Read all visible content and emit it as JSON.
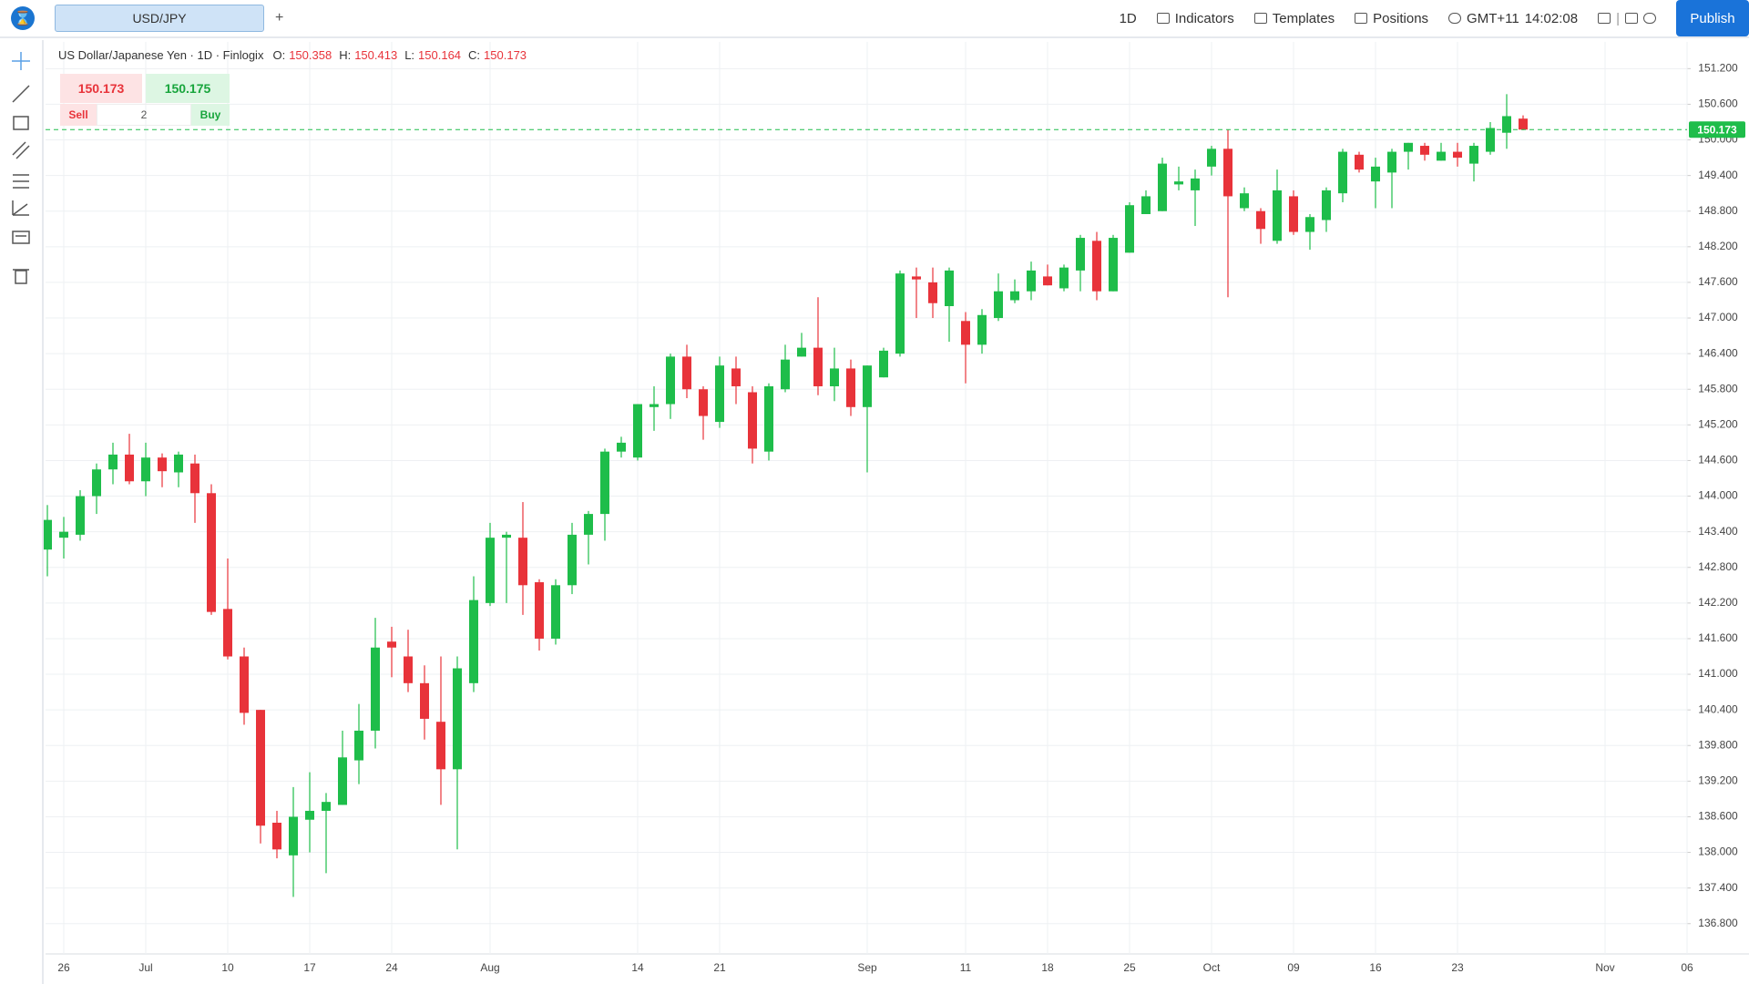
{
  "toolbar": {
    "tab": "USD/JPY",
    "add": "+",
    "interval": "1D",
    "indicators": "Indicators",
    "templates": "Templates",
    "positions": "Positions",
    "timezone": "GMT+11",
    "time": "14:02:08",
    "publish": "Publish"
  },
  "legend": {
    "title": "US Dollar/Japanese Yen · 1D · Finlogix",
    "fields": [
      {
        "label": "O:",
        "value": "150.358"
      },
      {
        "label": "H:",
        "value": "150.413"
      },
      {
        "label": "L:",
        "value": "150.164"
      },
      {
        "label": "C:",
        "value": "150.173"
      }
    ]
  },
  "trade": {
    "sell_price": "150.173",
    "buy_price": "150.175",
    "sell": "Sell",
    "quantity": "2",
    "buy": "Buy"
  },
  "chart_data": {
    "type": "candlestick",
    "categories": [
      null,
      "26",
      null,
      null,
      null,
      null,
      "Jul",
      null,
      null,
      null,
      null,
      "10",
      null,
      null,
      null,
      null,
      "17",
      null,
      null,
      null,
      null,
      "24",
      null,
      null,
      null,
      null,
      null,
      "Aug",
      null,
      null,
      null,
      null,
      null,
      null,
      null,
      null,
      "14",
      null,
      null,
      null,
      null,
      "21",
      null,
      null,
      null,
      null,
      null,
      null,
      null,
      null,
      "Sep",
      null,
      null,
      null,
      null,
      null,
      "11",
      null,
      null,
      null,
      null,
      "18",
      null,
      null,
      null,
      null,
      "25",
      null,
      null,
      null,
      null,
      "Oct",
      null,
      null,
      null,
      null,
      "09",
      null,
      null,
      null,
      null,
      "16",
      null,
      null,
      null,
      null,
      "23",
      null,
      null,
      null,
      null,
      null,
      null,
      null,
      null,
      "Nov",
      null,
      null,
      null,
      null,
      "06"
    ],
    "open": [
      143.1,
      143.3,
      143.35,
      144.0,
      144.45,
      144.7,
      144.25,
      144.65,
      144.4,
      144.55,
      144.05,
      142.1,
      141.3,
      140.4,
      138.5,
      137.95,
      138.55,
      138.7,
      138.8,
      139.55,
      140.05,
      141.55,
      141.3,
      140.85,
      140.2,
      139.4,
      140.85,
      142.2,
      143.3,
      143.3,
      142.55,
      141.6,
      142.5,
      143.35,
      143.7,
      144.75,
      144.65,
      145.5,
      145.55,
      146.35,
      145.8,
      145.25,
      146.15,
      145.75,
      144.75,
      145.8,
      146.35,
      146.5,
      145.85,
      146.15,
      145.5,
      146.0,
      146.4,
      147.7,
      147.6,
      147.2,
      146.95,
      146.55,
      147.0,
      147.3,
      147.45,
      147.7,
      147.5,
      147.8,
      148.3,
      147.45,
      148.1,
      148.75,
      148.8,
      149.25,
      149.15,
      149.55,
      149.85,
      148.85,
      148.8,
      148.3,
      149.05,
      148.45,
      148.65,
      149.1,
      149.75,
      149.3,
      149.45,
      149.8,
      149.9,
      149.65,
      149.8,
      149.6,
      149.8,
      150.12,
      150.358,
      null,
      null,
      null,
      null,
      null,
      null,
      null,
      null,
      null,
      null
    ],
    "high": [
      143.85,
      143.65,
      144.1,
      144.55,
      144.9,
      145.05,
      144.9,
      144.72,
      144.75,
      144.7,
      144.2,
      142.95,
      141.45,
      140.4,
      138.7,
      139.1,
      139.35,
      139.0,
      140.05,
      140.5,
      141.95,
      141.8,
      141.75,
      141.15,
      141.3,
      141.3,
      142.65,
      143.55,
      143.4,
      143.9,
      142.6,
      142.6,
      143.55,
      143.75,
      144.8,
      145.0,
      145.55,
      145.85,
      146.4,
      146.55,
      145.85,
      146.35,
      146.35,
      145.85,
      145.9,
      146.55,
      146.75,
      147.35,
      146.5,
      146.3,
      146.2,
      146.5,
      147.8,
      147.85,
      147.85,
      147.85,
      147.1,
      147.15,
      147.75,
      147.65,
      147.95,
      147.9,
      147.9,
      148.4,
      148.45,
      148.4,
      148.95,
      149.15,
      149.7,
      149.55,
      149.5,
      149.9,
      150.17,
      149.2,
      148.85,
      149.5,
      149.15,
      148.75,
      149.2,
      149.85,
      149.8,
      149.7,
      149.85,
      149.95,
      149.95,
      149.95,
      149.95,
      149.95,
      150.3,
      150.77,
      150.413,
      null,
      null,
      null,
      null,
      null,
      null,
      null,
      null,
      null,
      null
    ],
    "low": [
      142.65,
      142.95,
      143.25,
      143.7,
      144.2,
      144.2,
      144.0,
      144.15,
      144.15,
      143.55,
      142.0,
      141.25,
      140.15,
      138.15,
      137.9,
      137.25,
      138.0,
      137.65,
      138.8,
      139.15,
      139.75,
      140.95,
      140.7,
      139.9,
      138.8,
      138.05,
      140.7,
      142.15,
      142.2,
      142.0,
      141.4,
      141.5,
      142.35,
      142.85,
      143.25,
      144.65,
      144.6,
      145.1,
      145.3,
      145.65,
      144.95,
      145.15,
      145.55,
      144.55,
      144.6,
      145.75,
      146.35,
      145.7,
      145.6,
      145.35,
      144.4,
      146.0,
      146.35,
      147.0,
      147.0,
      146.6,
      145.9,
      146.4,
      146.95,
      147.25,
      147.3,
      147.55,
      147.45,
      147.45,
      147.3,
      147.45,
      148.1,
      148.75,
      148.8,
      149.15,
      148.55,
      149.4,
      147.35,
      148.8,
      148.25,
      148.25,
      148.4,
      148.15,
      148.45,
      148.95,
      149.45,
      148.85,
      148.85,
      149.5,
      149.65,
      149.65,
      149.55,
      149.3,
      149.75,
      149.85,
      150.164,
      null,
      null,
      null,
      null,
      null,
      null,
      null,
      null,
      null,
      null
    ],
    "close": [
      143.6,
      143.4,
      144.0,
      144.45,
      144.7,
      144.25,
      144.65,
      144.42,
      144.7,
      144.05,
      142.05,
      141.3,
      140.35,
      138.45,
      138.05,
      138.6,
      138.7,
      138.85,
      139.6,
      140.05,
      141.45,
      141.45,
      140.85,
      140.25,
      139.4,
      141.1,
      142.25,
      143.3,
      143.35,
      142.5,
      141.6,
      142.5,
      143.35,
      143.7,
      144.75,
      144.9,
      145.55,
      145.55,
      146.35,
      145.8,
      145.35,
      146.2,
      145.85,
      144.8,
      145.85,
      146.3,
      146.5,
      145.85,
      146.15,
      145.5,
      146.2,
      146.45,
      147.75,
      147.65,
      147.25,
      147.8,
      146.55,
      147.05,
      147.45,
      147.45,
      147.8,
      147.55,
      147.85,
      148.35,
      147.45,
      148.35,
      148.9,
      149.05,
      149.6,
      149.3,
      149.35,
      149.85,
      149.05,
      149.1,
      148.5,
      149.15,
      148.45,
      148.7,
      149.15,
      149.8,
      149.5,
      149.55,
      149.8,
      149.95,
      149.75,
      149.8,
      149.7,
      149.9,
      150.2,
      150.4,
      150.173,
      null,
      null,
      null,
      null,
      null,
      null,
      null,
      null,
      null,
      null
    ],
    "up_color": "#1ebd4a",
    "down_color": "#e8333a",
    "ylim": [
      136.29,
      151.65
    ],
    "yticks": [
      {
        "value": 151.2,
        "label": "151.200"
      },
      {
        "value": 150.6,
        "label": "150.600"
      },
      {
        "value": 150.0,
        "label": "150.000"
      },
      {
        "value": 149.4,
        "label": "149.400"
      },
      {
        "value": 148.8,
        "label": "148.800"
      },
      {
        "value": 148.2,
        "label": "148.200"
      },
      {
        "value": 147.6,
        "label": "147.600"
      },
      {
        "value": 147.0,
        "label": "147.000"
      },
      {
        "value": 146.4,
        "label": "146.400"
      },
      {
        "value": 145.8,
        "label": "145.800"
      },
      {
        "value": 145.2,
        "label": "145.200"
      },
      {
        "value": 144.6,
        "label": "144.600"
      },
      {
        "value": 144.0,
        "label": "144.000"
      },
      {
        "value": 143.4,
        "label": "143.400"
      },
      {
        "value": 142.8,
        "label": "142.800"
      },
      {
        "value": 142.2,
        "label": "142.200"
      },
      {
        "value": 141.6,
        "label": "141.600"
      },
      {
        "value": 141.0,
        "label": "141.000"
      },
      {
        "value": 140.4,
        "label": "140.400"
      },
      {
        "value": 139.8,
        "label": "139.800"
      },
      {
        "value": 139.2,
        "label": "139.200"
      },
      {
        "value": 138.6,
        "label": "138.600"
      },
      {
        "value": 138.0,
        "label": "138.000"
      },
      {
        "value": 137.4,
        "label": "137.400"
      },
      {
        "value": 136.8,
        "label": "136.800"
      }
    ],
    "grid": true,
    "last_price": 150.173,
    "last_price_color": "#1ebd4a"
  }
}
